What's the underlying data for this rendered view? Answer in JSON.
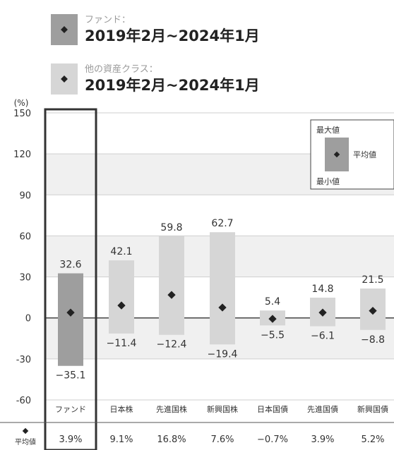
{
  "legend": {
    "fund": {
      "title": "ファンド：",
      "period": "2019年2月~2024年1月"
    },
    "other": {
      "title": "他の資産クラス：",
      "period": "2019年2月~2024年1月"
    },
    "box": {
      "max_label": "最大値",
      "avg_label": "平均値",
      "min_label": "最小値"
    }
  },
  "footer": {
    "avg_row_label": "平均値"
  },
  "colors": {
    "fund": "#9e9e9e",
    "other": "#d6d6d6",
    "marker": "#222222",
    "highlight_border": "#333333"
  },
  "chart_data": {
    "type": "bar",
    "ylabel": "(%)",
    "ylim": [
      -60,
      150
    ],
    "yticks": [
      150,
      120,
      90,
      60,
      30,
      0,
      -30,
      -60
    ],
    "grid": true,
    "legend_position": "top-right",
    "categories": [
      "ファンド",
      "日本株",
      "先進国株",
      "新興国株",
      "日本国債",
      "先進国債",
      "新興国債"
    ],
    "series": [
      {
        "name": "最大値",
        "values": [
          32.6,
          42.1,
          59.8,
          62.7,
          5.4,
          14.8,
          21.5
        ]
      },
      {
        "name": "最小値",
        "values": [
          -35.1,
          -11.4,
          -12.4,
          -19.4,
          -5.5,
          -6.1,
          -8.8
        ]
      },
      {
        "name": "平均値",
        "values": [
          3.9,
          9.1,
          16.8,
          7.6,
          -0.7,
          3.9,
          5.2
        ]
      }
    ],
    "max_labels": [
      "32.6",
      "42.1",
      "59.8",
      "62.7",
      "5.4",
      "14.8",
      "21.5"
    ],
    "min_labels": [
      "−35.1",
      "−11.4",
      "−12.4",
      "−19.4",
      "−5.5",
      "−6.1",
      "−8.8"
    ],
    "avg_labels": [
      "3.9%",
      "9.1%",
      "16.8%",
      "7.6%",
      "−0.7%",
      "3.9%",
      "5.2%"
    ]
  }
}
